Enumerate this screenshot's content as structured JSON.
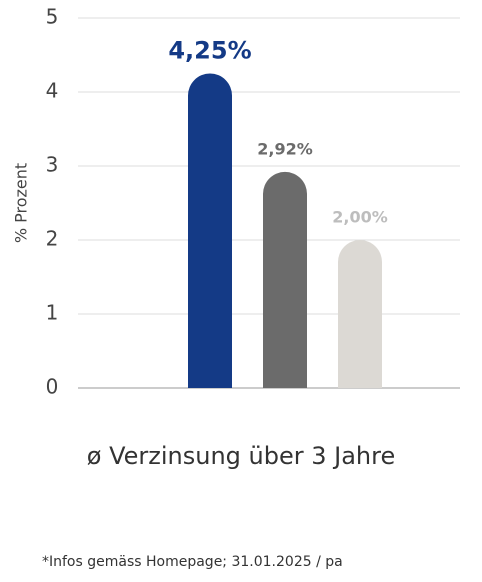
{
  "chart_data": {
    "type": "bar",
    "y_label": "% Prozent",
    "x_label": "ø Verzinsung über 3 Jahre",
    "footnote": "*Infos gemäss Homepage; 31.01.2025 / pa",
    "values": [
      4.25,
      2.92,
      2.0
    ],
    "value_labels": [
      "4,25%",
      "2,92%",
      "2,00%"
    ],
    "colors": [
      "#143a86",
      "#6b6b6b",
      "#dcd9d4"
    ],
    "label_colors": [
      "#143a86",
      "#6b6b6b",
      "#bdbdbd"
    ],
    "highlight": 0,
    "ylim": [
      0,
      5
    ],
    "yticks": [
      0,
      1,
      2,
      3,
      4,
      5
    ],
    "grid": true
  }
}
